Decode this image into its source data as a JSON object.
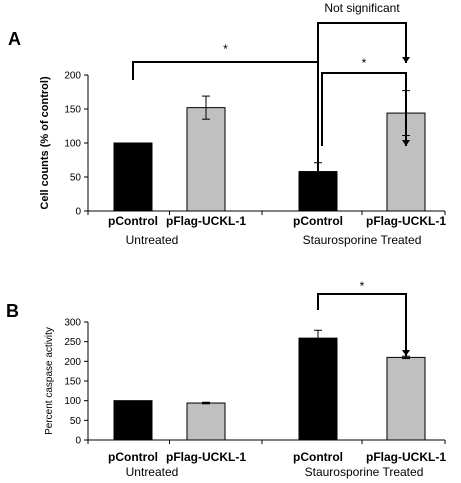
{
  "colors": {
    "control": "#000000",
    "uckl": "#c0c0c0",
    "line": "#000000"
  },
  "chart_data": [
    {
      "type": "bar",
      "panel_label": "A",
      "ylabel": "Cell counts (% of control)",
      "ylim": [
        0,
        200
      ],
      "yticks": [
        0,
        50,
        100,
        150,
        200
      ],
      "categories": [
        "pControl",
        "pFlag-UCKL-1",
        "pControl",
        "pFlag-UCKL-1"
      ],
      "groups": [
        "Untreated",
        "Staurosporine Treated"
      ],
      "values": [
        100,
        152,
        58,
        144
      ],
      "errors": [
        0,
        17,
        13,
        33
      ],
      "bar_colors": [
        "control",
        "uckl",
        "control",
        "uckl"
      ],
      "annotations": [
        {
          "from": 0,
          "to": 2,
          "text": "*"
        },
        {
          "from": 2,
          "to": 3,
          "text": "*"
        },
        {
          "from": 2,
          "to": 3,
          "text": "Not significant"
        }
      ]
    },
    {
      "type": "bar",
      "panel_label": "B",
      "ylabel": "Percent caspase activity",
      "ylim": [
        0,
        300
      ],
      "yticks": [
        0,
        50,
        100,
        150,
        200,
        250,
        300
      ],
      "categories": [
        "pControl",
        "pFlag-UCKL-1",
        "pControl",
        "pFlag-UCKL-1"
      ],
      "groups": [
        "Untreated",
        "Staurosporine Treated"
      ],
      "values": [
        100,
        94,
        259,
        210
      ],
      "errors": [
        0,
        2,
        20,
        3
      ],
      "bar_colors": [
        "control",
        "uckl",
        "control",
        "uckl"
      ],
      "annotations": [
        {
          "from": 2,
          "to": 3,
          "text": "*"
        }
      ]
    }
  ]
}
